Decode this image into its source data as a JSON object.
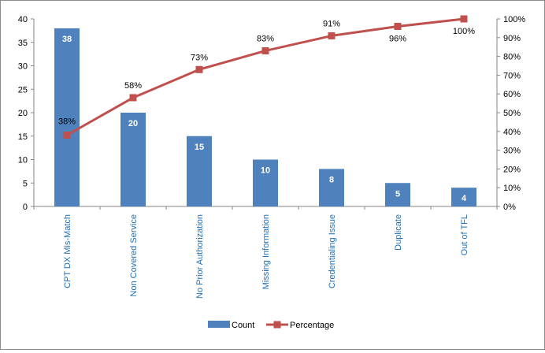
{
  "chart_data": {
    "type": "bar",
    "categories": [
      "CPT DX Mis-Match",
      "Non Covered Service",
      "No Prior Authorization",
      "Missing Information",
      "Credentialing Issue",
      "Duplicate",
      "Out of TFL"
    ],
    "series": [
      {
        "name": "Count",
        "type": "bar",
        "axis": "left",
        "color": "#4f81bd",
        "values": [
          38,
          20,
          15,
          10,
          8,
          5,
          4
        ]
      },
      {
        "name": "Percentage",
        "type": "line",
        "axis": "right",
        "color": "#c0504d",
        "values": [
          38,
          58,
          73,
          83,
          91,
          96,
          100
        ],
        "labels": [
          "38%",
          "58%",
          "73%",
          "83%",
          "91%",
          "96%",
          "100%"
        ]
      }
    ],
    "left_axis": {
      "min": 0,
      "max": 40,
      "step": 5,
      "tick_labels": [
        "0",
        "5",
        "10",
        "15",
        "20",
        "25",
        "30",
        "35",
        "40"
      ]
    },
    "right_axis": {
      "min": 0,
      "max": 100,
      "step": 10,
      "tick_labels": [
        "0%",
        "10%",
        "20%",
        "30%",
        "40%",
        "50%",
        "60%",
        "70%",
        "80%",
        "90%",
        "100%"
      ]
    },
    "grid": false,
    "legend_position": "bottom"
  }
}
